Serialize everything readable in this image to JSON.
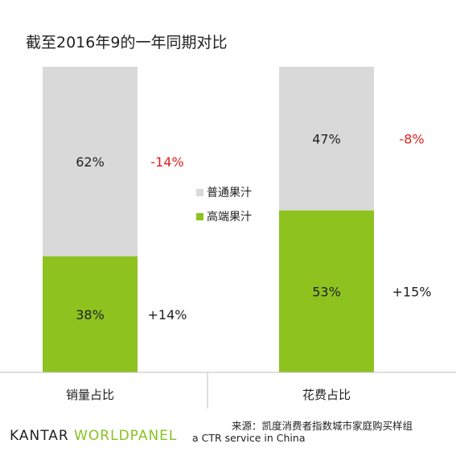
{
  "chart_data": {
    "type": "bar",
    "stacked": true,
    "title": "截至2016年9的一年同期对比",
    "categories": [
      "销量占比",
      "花费占比"
    ],
    "series": [
      {
        "name": "高端果汁",
        "values": [
          38,
          53
        ],
        "labels": [
          "38%",
          "53%"
        ],
        "changes": [
          "+14%",
          "+15%"
        ],
        "color": "#8dc21f"
      },
      {
        "name": "普通果汁",
        "values": [
          62,
          47
        ],
        "labels": [
          "62%",
          "47%"
        ],
        "changes": [
          "-14%",
          "-8%"
        ],
        "color": "#d9d9d9"
      }
    ],
    "ylim": [
      0,
      100
    ],
    "grid": false,
    "legend_position": "center",
    "change_colors": {
      "negative": "#e0201b",
      "positive": "#222222"
    }
  },
  "footer": {
    "source": "来源：凯度消费者指数城市家庭购买样组",
    "brand_main": "KANTAR",
    "brand_sub": "WORLDPANEL",
    "ctr_text": "a CTR service in China"
  }
}
